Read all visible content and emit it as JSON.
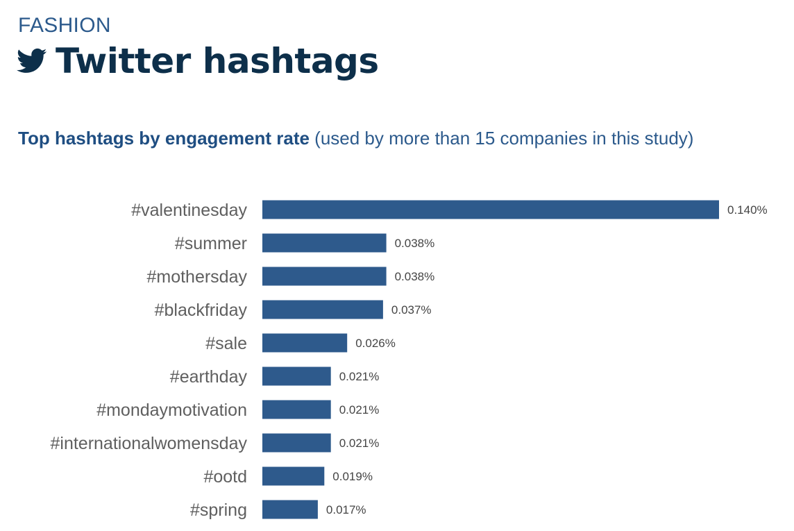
{
  "header": {
    "category": "FASHION",
    "title": "Twitter hashtags",
    "subtitle_bold": "Top hashtags by engagement rate",
    "subtitle_rest": "(used by more than 15 companies in this study)"
  },
  "colors": {
    "bar": "#2e5a8c",
    "label": "#5f5f5f",
    "value_label": "#444444",
    "accent": "#0d2f4a"
  },
  "chart_data": {
    "type": "bar",
    "orientation": "horizontal",
    "title": "Top hashtags by engagement rate",
    "xlabel": "",
    "ylabel": "",
    "xlim": [
      0,
      0.14
    ],
    "grid": false,
    "legend": "none",
    "categories": [
      "#valentinesday",
      "#summer",
      "#mothersday",
      "#blackfriday",
      "#sale",
      "#earthday",
      "#mondaymotivation",
      "#internationalwomensday",
      "#ootd",
      "#spring"
    ],
    "values": [
      0.14,
      0.038,
      0.038,
      0.037,
      0.026,
      0.021,
      0.021,
      0.021,
      0.019,
      0.017
    ],
    "value_labels": [
      "0.140%",
      "0.038%",
      "0.038%",
      "0.037%",
      "0.026%",
      "0.021%",
      "0.021%",
      "0.021%",
      "0.019%",
      "0.017%"
    ]
  }
}
